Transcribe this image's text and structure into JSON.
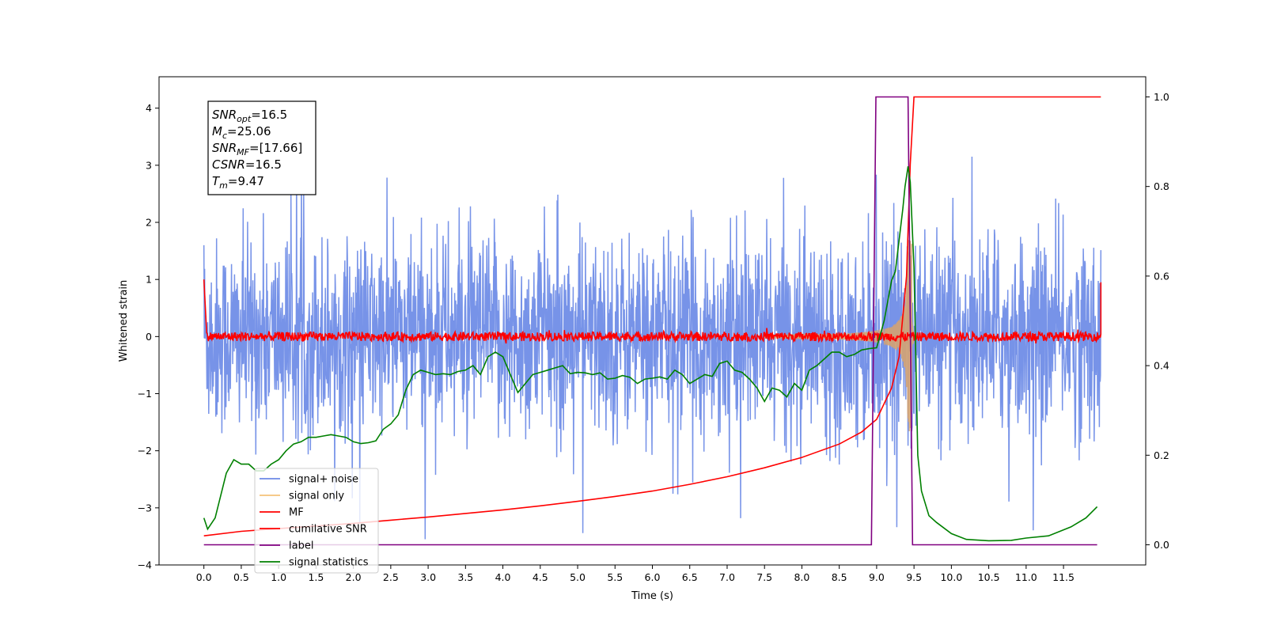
{
  "chart_data": {
    "type": "line",
    "xlabel": "Time (s)",
    "ylabel": "Whitened strain",
    "xlim": [
      -0.6,
      12.6
    ],
    "ylim": [
      -4.0,
      4.55
    ],
    "y2lim": [
      -0.045,
      1.045
    ],
    "x_ticks": [
      "0.0",
      "0.5",
      "1.0",
      "1.5",
      "2.0",
      "2.5",
      "3.0",
      "3.5",
      "4.0",
      "4.5",
      "5.0",
      "5.5",
      "6.0",
      "6.5",
      "7.0",
      "7.5",
      "8.0",
      "8.5",
      "9.0",
      "9.5",
      "10.0",
      "10.5",
      "11.0",
      "11.5"
    ],
    "y_ticks": [
      "−4",
      "−3",
      "−2",
      "−1",
      "0",
      "1",
      "2",
      "3",
      "4"
    ],
    "y2_ticks": [
      "0.0",
      "0.2",
      "0.4",
      "0.6",
      "0.8",
      "1.0"
    ],
    "grid": false,
    "legend_position": "lower-left",
    "info_box": {
      "lines": [
        {
          "name": "SNR",
          "sub": "opt",
          "value": "=16.5"
        },
        {
          "name": "M",
          "sub": "c",
          "value": "=25.06"
        },
        {
          "name": "SNR",
          "sub": "MF",
          "value": "=[17.66]"
        },
        {
          "name": "CSNR",
          "sub": "",
          "value": "=16.5"
        },
        {
          "name": "T",
          "sub": "m",
          "value": "=9.47"
        }
      ]
    },
    "series": [
      {
        "name": "signal+ noise",
        "color": "#6b8ae6",
        "axis": "left",
        "description_values": {
          "x_range": [
            0,
            12
          ],
          "typical_amplitude": 1.2,
          "max": 3.15,
          "min": -3.55
        }
      },
      {
        "name": "signal only",
        "color": "#f4c27a",
        "axis": "left",
        "description_values": {
          "x_range": [
            0,
            12
          ],
          "peak_time": 9.42,
          "peak_amplitude": 2.9
        }
      },
      {
        "name": "MF",
        "color": "#ff0000",
        "axis": "left",
        "description_values": {
          "x_range": [
            0,
            12
          ],
          "baseline": 0.0,
          "noise_amplitude": 0.07,
          "start_value": 1.0,
          "end_value": 0.95
        }
      },
      {
        "name": "cumilative SNR",
        "color": "#ff0000",
        "axis": "right",
        "x": [
          0,
          0.5,
          1.0,
          1.5,
          2.0,
          2.5,
          3.0,
          3.5,
          4.0,
          4.5,
          5.0,
          5.5,
          6.0,
          6.5,
          7.0,
          7.5,
          8.0,
          8.5,
          8.8,
          9.0,
          9.2,
          9.3,
          9.4,
          9.45,
          9.5,
          12.0
        ],
        "y": [
          0.02,
          0.03,
          0.036,
          0.042,
          0.048,
          0.055,
          0.062,
          0.07,
          0.078,
          0.087,
          0.097,
          0.108,
          0.12,
          0.135,
          0.152,
          0.172,
          0.195,
          0.225,
          0.252,
          0.28,
          0.35,
          0.42,
          0.6,
          0.85,
          1.0,
          1.0
        ]
      },
      {
        "name": "label",
        "color": "#800080",
        "axis": "right",
        "x": [
          0,
          8.93,
          8.99,
          9.42,
          9.48,
          11.95
        ],
        "y": [
          0,
          0,
          1,
          1,
          0,
          0
        ]
      },
      {
        "name": "signal statistics",
        "color": "#008000",
        "axis": "right",
        "x": [
          0.0,
          0.05,
          0.15,
          0.3,
          0.4,
          0.5,
          0.6,
          0.7,
          0.8,
          0.9,
          1.0,
          1.1,
          1.2,
          1.3,
          1.4,
          1.5,
          1.6,
          1.7,
          1.8,
          1.9,
          2.0,
          2.1,
          2.2,
          2.3,
          2.4,
          2.5,
          2.6,
          2.7,
          2.8,
          2.9,
          3.0,
          3.1,
          3.2,
          3.3,
          3.4,
          3.5,
          3.6,
          3.7,
          3.8,
          3.9,
          4.0,
          4.1,
          4.2,
          4.3,
          4.4,
          4.5,
          4.6,
          4.7,
          4.8,
          4.9,
          5.0,
          5.1,
          5.2,
          5.3,
          5.4,
          5.5,
          5.6,
          5.7,
          5.8,
          5.9,
          6.0,
          6.1,
          6.2,
          6.3,
          6.4,
          6.5,
          6.6,
          6.7,
          6.8,
          6.9,
          7.0,
          7.1,
          7.2,
          7.3,
          7.4,
          7.5,
          7.6,
          7.7,
          7.8,
          7.9,
          8.0,
          8.1,
          8.2,
          8.3,
          8.4,
          8.5,
          8.6,
          8.7,
          8.8,
          8.9,
          9.0,
          9.1,
          9.2,
          9.25,
          9.3,
          9.35,
          9.38,
          9.42,
          9.45,
          9.5,
          9.55,
          9.6,
          9.7,
          9.8,
          10.0,
          10.2,
          10.5,
          10.8,
          11.0,
          11.3,
          11.6,
          11.8,
          11.95
        ],
        "y": [
          0.06,
          0.035,
          0.06,
          0.16,
          0.19,
          0.18,
          0.18,
          0.165,
          0.165,
          0.18,
          0.19,
          0.21,
          0.225,
          0.23,
          0.24,
          0.24,
          0.243,
          0.246,
          0.243,
          0.24,
          0.23,
          0.226,
          0.228,
          0.232,
          0.258,
          0.27,
          0.29,
          0.345,
          0.38,
          0.39,
          0.385,
          0.38,
          0.382,
          0.38,
          0.387,
          0.39,
          0.4,
          0.38,
          0.42,
          0.43,
          0.42,
          0.38,
          0.34,
          0.36,
          0.38,
          0.385,
          0.39,
          0.395,
          0.4,
          0.382,
          0.385,
          0.384,
          0.38,
          0.384,
          0.37,
          0.372,
          0.378,
          0.374,
          0.36,
          0.37,
          0.372,
          0.375,
          0.37,
          0.39,
          0.38,
          0.36,
          0.37,
          0.38,
          0.376,
          0.405,
          0.41,
          0.39,
          0.385,
          0.37,
          0.35,
          0.32,
          0.35,
          0.345,
          0.33,
          0.36,
          0.345,
          0.39,
          0.4,
          0.415,
          0.43,
          0.43,
          0.42,
          0.425,
          0.435,
          0.438,
          0.44,
          0.5,
          0.59,
          0.61,
          0.68,
          0.75,
          0.8,
          0.845,
          0.81,
          0.62,
          0.2,
          0.12,
          0.065,
          0.05,
          0.025,
          0.012,
          0.009,
          0.01,
          0.015,
          0.02,
          0.04,
          0.06,
          0.085
        ]
      }
    ]
  }
}
